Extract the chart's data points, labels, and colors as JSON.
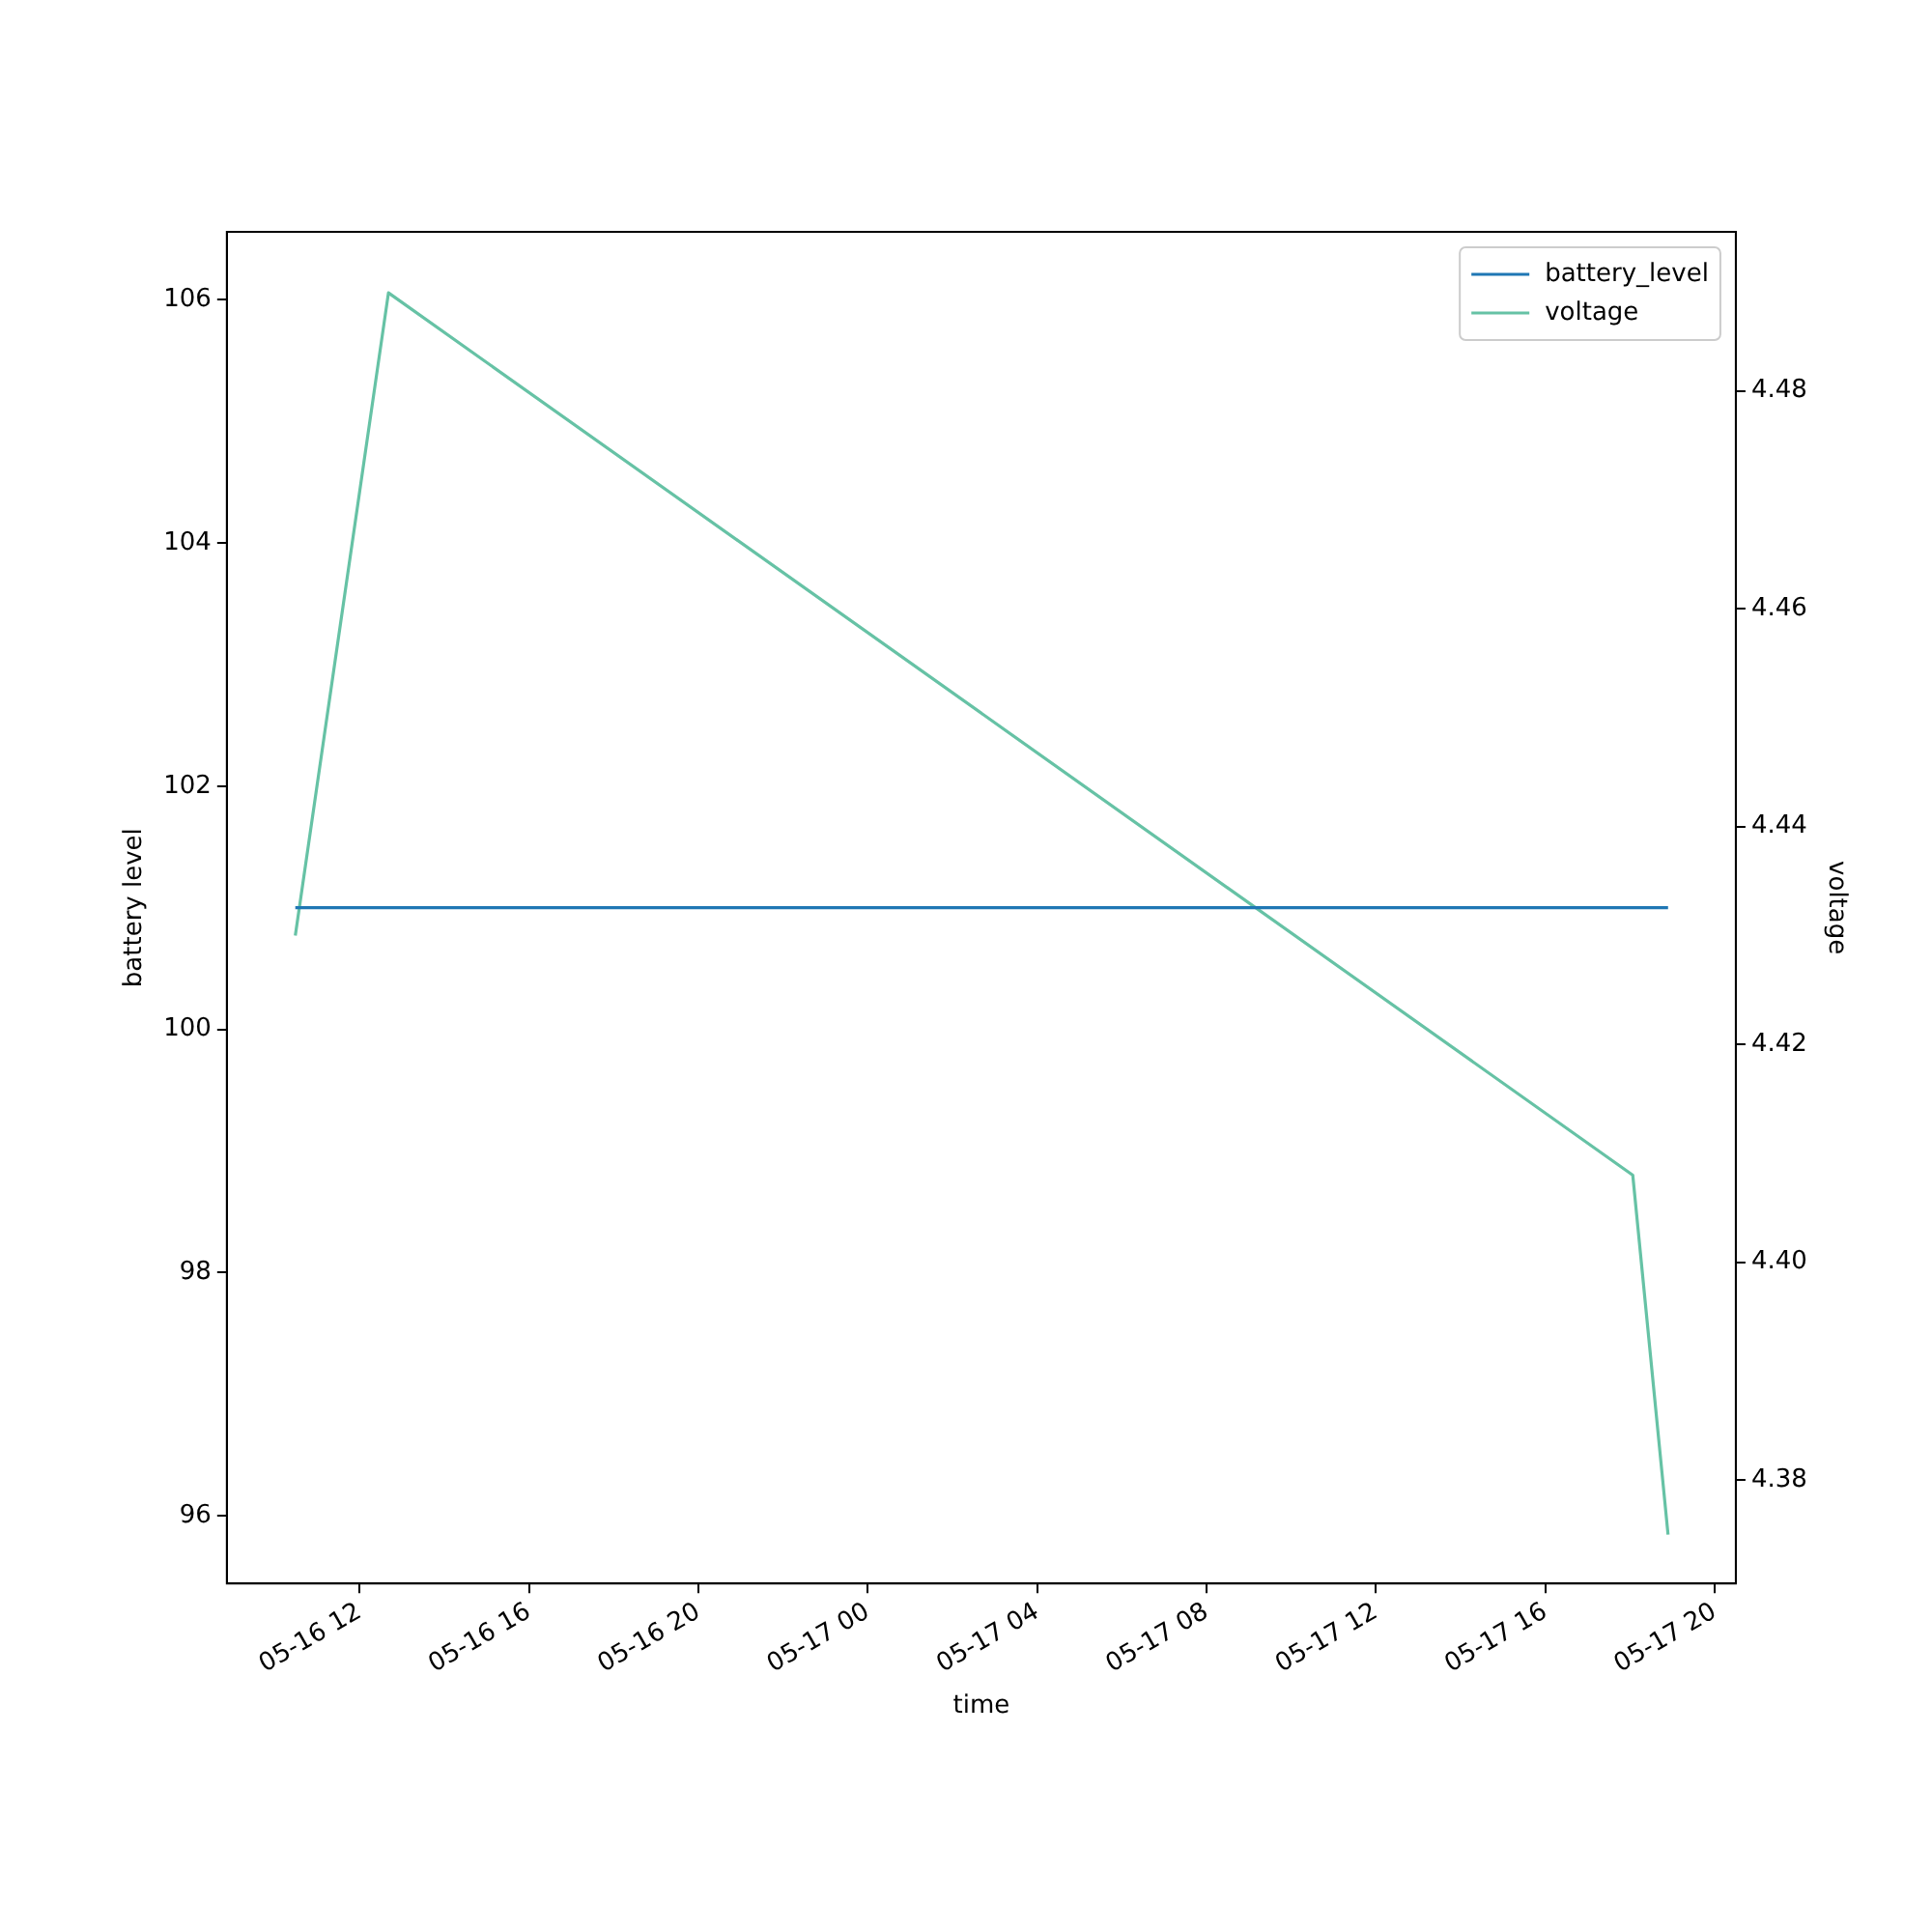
{
  "chart_data": {
    "type": "line",
    "xlabel": "time",
    "ylabel": "battery level",
    "y2label": "voltage",
    "xlim": [
      "--05-16T08:52",
      "--05-17T20:30"
    ],
    "xticks": [
      {
        "value": "--05-16T12:00",
        "label": "05-16 12"
      },
      {
        "value": "--05-16T16:00",
        "label": "05-16 16"
      },
      {
        "value": "--05-16T20:00",
        "label": "05-16 20"
      },
      {
        "value": "--05-17T00:00",
        "label": "05-17 00"
      },
      {
        "value": "--05-17T04:00",
        "label": "05-17 04"
      },
      {
        "value": "--05-17T08:00",
        "label": "05-17 08"
      },
      {
        "value": "--05-17T12:00",
        "label": "05-17 12"
      },
      {
        "value": "--05-17T16:00",
        "label": "05-17 16"
      },
      {
        "value": "--05-17T20:00",
        "label": "05-17 20"
      }
    ],
    "ylim": [
      95.44,
      106.56
    ],
    "yticks": [
      96,
      98,
      100,
      102,
      104,
      106
    ],
    "y2lim": [
      4.3705,
      4.4946
    ],
    "y2ticks": [
      {
        "value": 4.38,
        "label": "4.38"
      },
      {
        "value": 4.4,
        "label": "4.40"
      },
      {
        "value": 4.42,
        "label": "4.42"
      },
      {
        "value": 4.44,
        "label": "4.44"
      },
      {
        "value": 4.46,
        "label": "4.46"
      },
      {
        "value": 4.48,
        "label": "4.48"
      }
    ],
    "series": [
      {
        "name": "battery_level",
        "color": "#1f77b4",
        "x": [
          "--05-16T10:29",
          "--05-17T18:54"
        ],
        "values": [
          101,
          101
        ]
      },
      {
        "name": "voltage",
        "color": "#66c2a5",
        "axis": "y2",
        "x": [
          "--05-16T10:29",
          "--05-16T12:41",
          "--05-17T18:04",
          "--05-17T18:54"
        ],
        "values": [
          4.43,
          4.489,
          4.408,
          4.375
        ]
      }
    ],
    "grid": false,
    "legend": "top right",
    "marker": "none",
    "line_style": "solid"
  }
}
